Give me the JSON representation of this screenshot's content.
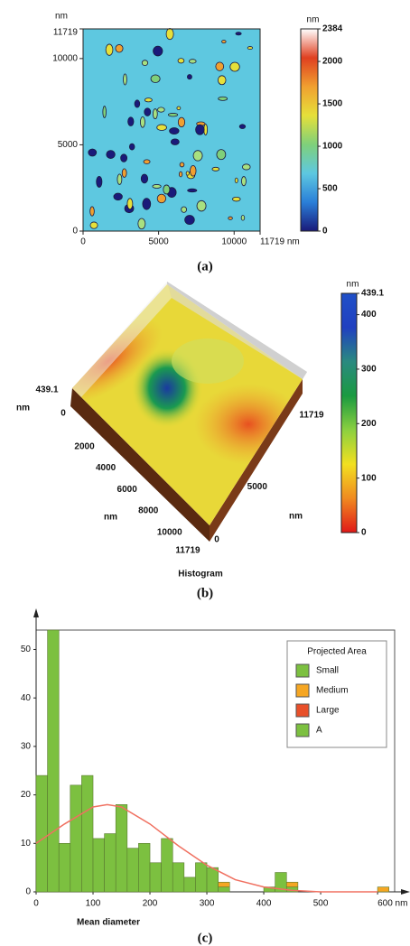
{
  "chart_data": [
    {
      "type": "map2d",
      "caption": "(a)",
      "ylabel": "nm",
      "xlim": [
        0,
        11719
      ],
      "xticks": [
        0,
        5000,
        10000,
        {
          "value": 11719,
          "label": "11719 nm"
        }
      ],
      "ylim": [
        0,
        11719
      ],
      "yticks": [
        0,
        5000,
        10000,
        11719
      ],
      "background": "#5ec8e0",
      "colorbar": {
        "label": "nm",
        "lim": [
          0,
          2384
        ],
        "ticks": [
          0,
          500,
          1000,
          1500,
          2000,
          2384
        ],
        "colors": [
          "#1a1a7a",
          "#2a7fd8",
          "#5ec8e0",
          "#7fd07a",
          "#e6e03a",
          "#f0a030",
          "#e04020",
          "#ffffff"
        ]
      }
    },
    {
      "type": "surface3d",
      "caption": "(b)",
      "xlabel": "nm",
      "ylabel": "nm",
      "zlabel": "nm",
      "xlim": [
        0,
        11719
      ],
      "xticks": [
        2000,
        4000,
        6000,
        8000,
        10000,
        11719
      ],
      "ylim": [
        0,
        11719
      ],
      "yticks": [
        0,
        5000,
        11719
      ],
      "zlim": [
        0,
        439.1
      ],
      "zticks": [
        0,
        439.1
      ],
      "colorbar": {
        "label": "nm",
        "lim": [
          0,
          439.1
        ],
        "ticks": [
          0,
          100,
          200,
          300,
          400,
          439.1
        ],
        "colors": [
          "#e01818",
          "#f08a20",
          "#f2e020",
          "#8cd040",
          "#1a9a40",
          "#2a8a80",
          "#2040c0",
          "#2050c8"
        ]
      }
    },
    {
      "type": "histogram",
      "title": "Histogram",
      "caption": "(c)",
      "xlabel": "Mean diameter",
      "legend_title": "Projected Area",
      "legend": "upper right",
      "bins": [
        0,
        20,
        40,
        60,
        80,
        100,
        120,
        140,
        160,
        180,
        200,
        220,
        240,
        260,
        280,
        300,
        320,
        340,
        360,
        380,
        400,
        420,
        440,
        460,
        480,
        500,
        520,
        540,
        560,
        580,
        600,
        620
      ],
      "xlim": [
        0,
        630
      ],
      "xticks": [
        0,
        100,
        200,
        300,
        400,
        500,
        {
          "value": 600,
          "label": "600 nm"
        }
      ],
      "ylim": [
        0,
        54
      ],
      "yticks": [
        0,
        10,
        20,
        30,
        40,
        50
      ],
      "series": [
        {
          "name": "Small",
          "color": "#7cc040",
          "values": [
            24,
            54,
            10,
            22,
            24,
            11,
            12,
            18,
            9,
            10,
            6,
            11,
            6,
            3,
            6,
            5,
            1,
            0,
            0,
            0,
            1,
            4,
            1,
            0,
            0,
            0,
            0,
            0,
            0,
            0,
            0
          ]
        },
        {
          "name": "Medium",
          "color": "#f5a623",
          "values": [
            0,
            0,
            0,
            0,
            0,
            0,
            0,
            0,
            0,
            0,
            0,
            0,
            0,
            0,
            0,
            0,
            1,
            0,
            0,
            0,
            0,
            0,
            1,
            0,
            0,
            0,
            0,
            0,
            0,
            0,
            1
          ]
        },
        {
          "name": "Large",
          "color": "#e8502a",
          "values": [
            0,
            0,
            0,
            0,
            0,
            0,
            0,
            0,
            0,
            0,
            0,
            0,
            0,
            0,
            0,
            0,
            0,
            0,
            0,
            0,
            0,
            0,
            0,
            0,
            0,
            0,
            0,
            0,
            0,
            0,
            0
          ]
        },
        {
          "name": "A",
          "color": "#7cc040",
          "values": [
            0,
            0,
            0,
            0,
            0,
            0,
            0,
            0,
            0,
            0,
            0,
            0,
            0,
            0,
            0,
            0,
            0,
            0,
            0,
            0,
            0,
            0,
            0,
            0,
            0,
            0,
            0,
            0,
            0,
            0,
            0
          ]
        }
      ],
      "curve": {
        "color": "#f07060",
        "x": [
          0,
          50,
          100,
          125,
          150,
          200,
          250,
          300,
          350,
          400,
          450,
          500,
          600
        ],
        "values": [
          10,
          14,
          17.5,
          18,
          17.5,
          14,
          9.5,
          5.5,
          2.5,
          1,
          0.3,
          0,
          0
        ]
      }
    }
  ]
}
